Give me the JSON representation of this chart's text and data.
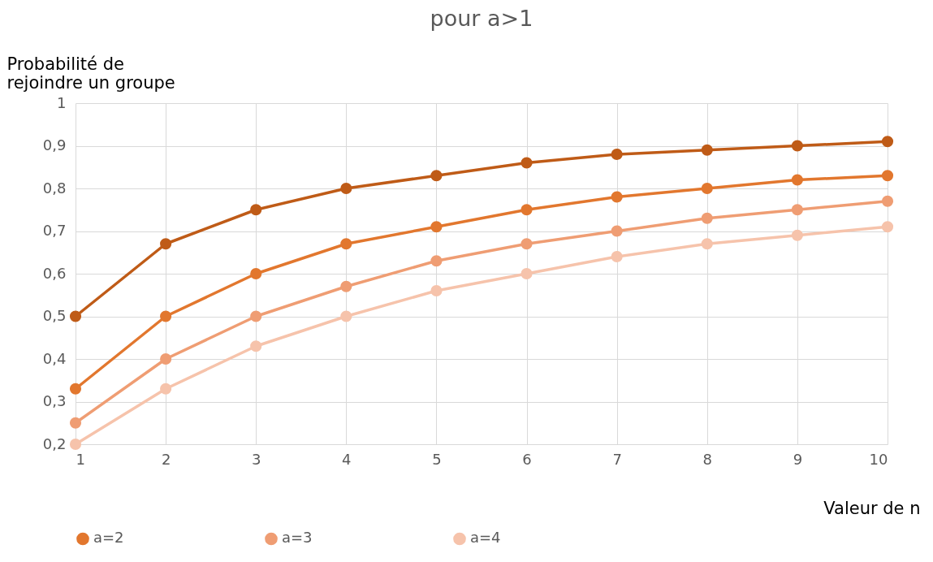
{
  "chart_data": {
    "type": "line",
    "title": "pour a>1",
    "xlabel": "Valeur de n",
    "ylabel": "Probabilité de rejoindre un groupe",
    "x": [
      1,
      2,
      3,
      4,
      5,
      6,
      7,
      8,
      9,
      10
    ],
    "series": [
      {
        "color": "#bf5b17",
        "values": [
          0.5,
          0.67,
          0.75,
          0.8,
          0.83,
          0.86,
          0.88,
          0.89,
          0.9,
          0.91
        ]
      },
      {
        "name": "a=2",
        "color": "#e2772e",
        "values": [
          0.33,
          0.5,
          0.6,
          0.67,
          0.71,
          0.75,
          0.78,
          0.8,
          0.82,
          0.83
        ]
      },
      {
        "name": "a=3",
        "color": "#ef9d73",
        "values": [
          0.25,
          0.4,
          0.5,
          0.57,
          0.63,
          0.67,
          0.7,
          0.73,
          0.75,
          0.77
        ]
      },
      {
        "name": "a=4",
        "color": "#f6c3ab",
        "values": [
          0.2,
          0.33,
          0.43,
          0.5,
          0.56,
          0.6,
          0.64,
          0.67,
          0.69,
          0.71
        ]
      }
    ],
    "xlim": [
      1,
      10
    ],
    "xticks": [
      1,
      2,
      3,
      4,
      5,
      6,
      7,
      8,
      9,
      10
    ],
    "ylim": [
      0.2,
      1
    ],
    "yticks": [
      {
        "value": 0.2,
        "label": "0,2"
      },
      {
        "value": 0.3,
        "label": "0,3"
      },
      {
        "value": 0.4,
        "label": "0,4"
      },
      {
        "value": 0.5,
        "label": "0,5"
      },
      {
        "value": 0.6,
        "label": "0,6"
      },
      {
        "value": 0.7,
        "label": "0,7"
      },
      {
        "value": 0.8,
        "label": "0,8"
      },
      {
        "value": 0.9,
        "label": "0,9"
      },
      1
    ],
    "grid": true,
    "legend": "bottom",
    "marker": "circle",
    "line_style": "solid"
  }
}
